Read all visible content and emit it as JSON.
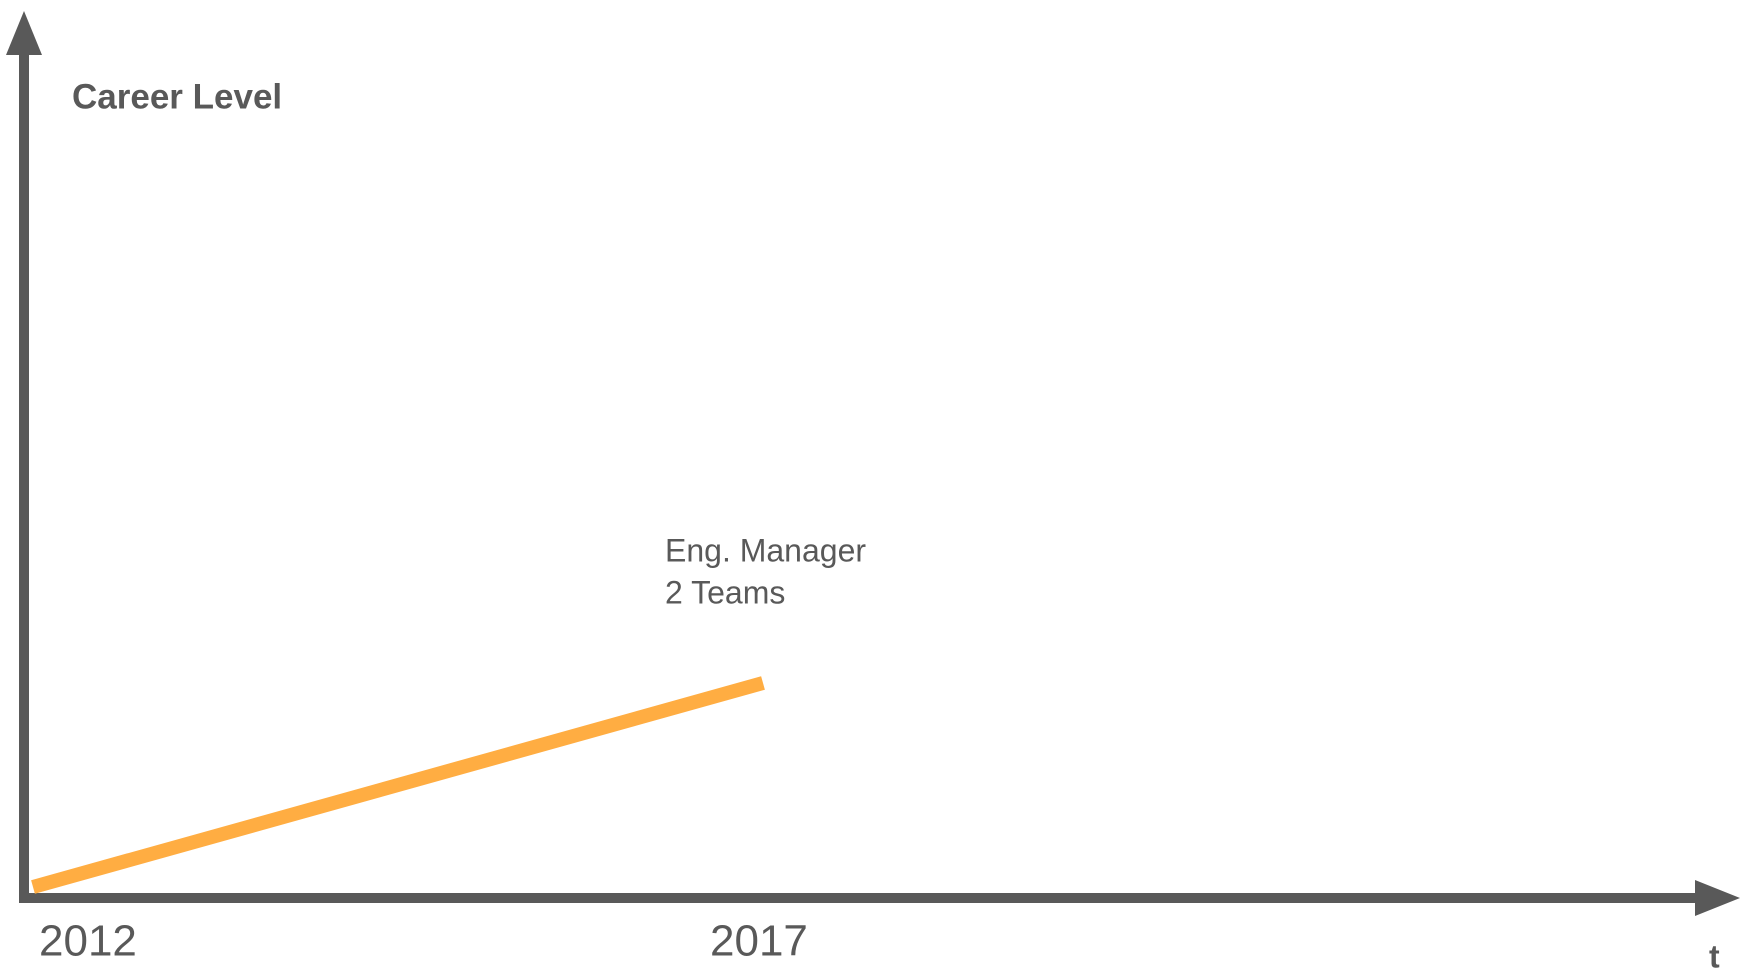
{
  "y_axis": {
    "label": "Career Level"
  },
  "x_axis": {
    "label": "t",
    "labels": [
      "2012",
      "2017"
    ]
  },
  "annotation": {
    "lines": [
      "Eng. Manager",
      "2 Teams"
    ]
  }
}
